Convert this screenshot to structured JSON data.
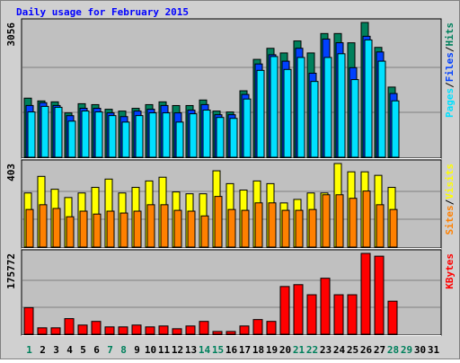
{
  "chart_data": [
    {
      "type": "bar",
      "title": "Daily usage for February 2015",
      "ylim": [
        0,
        3056
      ],
      "yticks": [
        3056
      ],
      "gridlines": [
        1018.7,
        2037.3
      ],
      "legend_separator": "/",
      "series": [
        {
          "name": "Hits",
          "color": "#00805c",
          "values": [
            1340,
            1277,
            1256,
            1005,
            1214,
            1193,
            1088,
            1047,
            1109,
            1193,
            1256,
            1172,
            1172,
            1298,
            1047,
            1026,
            1507,
            2219,
            2470,
            2365,
            2637,
            2365,
            2805,
            2805,
            2595,
            3056,
            2491,
            1591,
            null,
            null,
            null
          ]
        },
        {
          "name": "Files",
          "color": "#0040ff",
          "values": [
            1214,
            1277,
            1214,
            984,
            1151,
            1151,
            1047,
            963,
            1088,
            1130,
            1214,
            1047,
            1109,
            1235,
            1005,
            1005,
            1465,
            2156,
            2365,
            2219,
            2512,
            1946,
            2721,
            2637,
            2072,
            2784,
            2428,
            1486,
            null,
            null,
            null
          ]
        },
        {
          "name": "Pages",
          "color": "#00e0ff",
          "values": [
            1109,
            1235,
            1214,
            900,
            1130,
            1109,
            1026,
            879,
            1026,
            1088,
            1088,
            879,
            1067,
            1151,
            984,
            963,
            1402,
            2051,
            2365,
            2072,
            2344,
            1800,
            2344,
            2428,
            1842,
            2742,
            2260,
            1360,
            null,
            null,
            null
          ]
        }
      ]
    },
    {
      "type": "bar",
      "ylim": [
        0,
        403
      ],
      "yticks": [
        403
      ],
      "gridlines": [
        134.3,
        268.7
      ],
      "series": [
        {
          "name": "Visits",
          "color": "#ffff00",
          "values": [
            261,
            341,
            279,
            239,
            261,
            288,
            328,
            261,
            288,
            319,
            337,
            266,
            257,
            257,
            368,
            306,
            275,
            319,
            306,
            213,
            230,
            261,
            261,
            403,
            363,
            363,
            346,
            288,
            null,
            null,
            null
          ]
        },
        {
          "name": "Sites",
          "color": "#ff8000",
          "values": [
            190,
            213,
            195,
            155,
            182,
            168,
            182,
            173,
            182,
            213,
            213,
            186,
            182,
            159,
            253,
            190,
            186,
            222,
            222,
            186,
            186,
            190,
            261,
            261,
            244,
            279,
            213,
            190,
            null,
            null,
            null
          ]
        }
      ]
    },
    {
      "type": "bar",
      "ylim": [
        0,
        175772
      ],
      "yticks": [
        175772
      ],
      "gridlines": [
        58591,
        117181
      ],
      "categories": [
        "1",
        "2",
        "3",
        "4",
        "5",
        "6",
        "7",
        "8",
        "9",
        "10",
        "11",
        "12",
        "13",
        "14",
        "15",
        "16",
        "17",
        "18",
        "19",
        "20",
        "21",
        "22",
        "23",
        "24",
        "25",
        "26",
        "27",
        "28",
        "29",
        "30",
        "31"
      ],
      "category_colors": [
        "#00805c",
        "#000000",
        "#000000",
        "#000000",
        "#000000",
        "#000000",
        "#00805c",
        "#00805c",
        "#000000",
        "#000000",
        "#000000",
        "#000000",
        "#000000",
        "#00805c",
        "#00805c",
        "#000000",
        "#000000",
        "#000000",
        "#000000",
        "#000000",
        "#00805c",
        "#00805c",
        "#000000",
        "#000000",
        "#000000",
        "#000000",
        "#000000",
        "#00805c",
        "#00805c",
        "#000000",
        "#000000"
      ],
      "series": [
        {
          "name": "KBytes",
          "color": "#ff0000",
          "values": [
            57900,
            13980,
            13980,
            33950,
            19970,
            27960,
            15980,
            15980,
            19970,
            15980,
            17970,
            11980,
            17970,
            27960,
            5990,
            5990,
            17970,
            31950,
            27960,
            103800,
            107800,
            85870,
            121800,
            85870,
            85870,
            175772,
            169700,
            71890,
            null,
            null,
            null
          ]
        }
      ]
    }
  ]
}
